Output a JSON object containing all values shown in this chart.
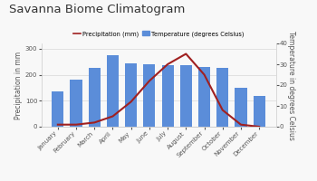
{
  "title": "Savanna Biome Climatogram",
  "months": [
    "January",
    "February",
    "March",
    "April",
    "May",
    "June",
    "July",
    "August",
    "September",
    "October",
    "November",
    "December"
  ],
  "temperature_mm": [
    135,
    180,
    225,
    275,
    245,
    240,
    235,
    235,
    230,
    225,
    150,
    120
  ],
  "precipitation_celsius": [
    1,
    1,
    2,
    5,
    12,
    22,
    30,
    35,
    25,
    8,
    1,
    0
  ],
  "bar_color": "#5b8dd9",
  "line_color": "#a02020",
  "ylabel_left": "Precipitation in mm",
  "ylabel_right": "Temperature in degrees Celsius",
  "legend_precip": "Precipitation (mm)",
  "legend_temp": "Temperature (degrees Celsius)",
  "ylim_left": [
    0,
    320
  ],
  "ylim_right": [
    0,
    40
  ],
  "yticks_left": [
    0,
    100,
    200,
    300
  ],
  "yticks_right": [
    0,
    10,
    20,
    30,
    40
  ],
  "background_color": "#f8f8f8",
  "title_fontsize": 9.5,
  "axis_fontsize": 5.5,
  "tick_fontsize": 5.0,
  "legend_fontsize": 4.8
}
